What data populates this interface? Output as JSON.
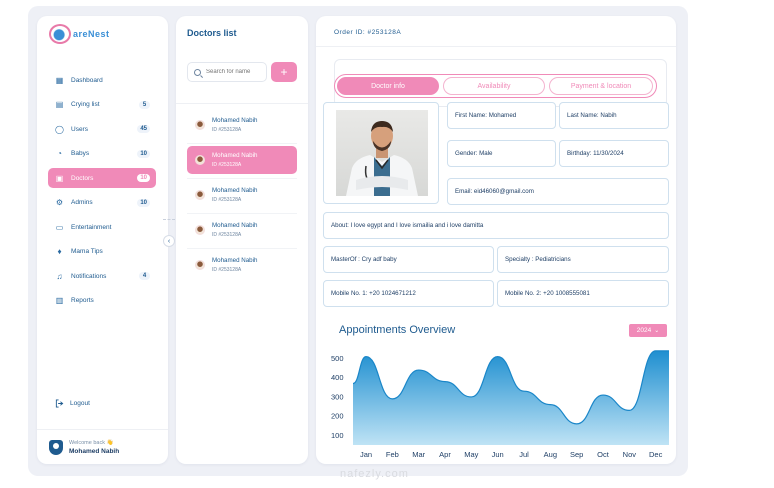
{
  "app": {
    "logo_text": "areNest"
  },
  "sidebar": {
    "items": [
      {
        "label": "Dashboard",
        "icon": "grid-icon",
        "count": ""
      },
      {
        "label": "Crying list",
        "icon": "doc-icon",
        "count": "5"
      },
      {
        "label": "Users",
        "icon": "user-icon",
        "count": "45"
      },
      {
        "label": "Babys",
        "icon": "baby-icon",
        "count": "10"
      },
      {
        "label": "Doctors",
        "icon": "briefcase-icon",
        "count": "10",
        "active": true
      },
      {
        "label": "Admins",
        "icon": "gear-icon",
        "count": "10"
      },
      {
        "label": "Entertainment",
        "icon": "film-icon",
        "count": ""
      },
      {
        "label": "Mama Tips",
        "icon": "tips-icon",
        "count": ""
      },
      {
        "label": "Notifications",
        "icon": "bell-icon",
        "count": "4"
      },
      {
        "label": "Reports",
        "icon": "report-icon",
        "count": ""
      }
    ],
    "logout": "Logout",
    "welcome": "Welcome back 👋",
    "user_name": "Mohamed Nabih"
  },
  "doctors": {
    "title": "Doctors list",
    "search_placeholder": "Search for name",
    "add_label": "+",
    "items": [
      {
        "name": "Mohamed Nabih",
        "id": "ID #253128A"
      },
      {
        "name": "Mohamed Nabih",
        "id": "ID #253128A",
        "active": true
      },
      {
        "name": "Mohamed Nabih",
        "id": "ID #253128A"
      },
      {
        "name": "Mohamed Nabih",
        "id": "ID #253128A"
      },
      {
        "name": "Mohamed Nabih",
        "id": "ID #253128A"
      }
    ]
  },
  "details": {
    "order_id": "Order ID: #253128A",
    "tabs": [
      "Doctor info",
      "Availability",
      "Payment & location"
    ],
    "first_name": "First Name: Mohamed",
    "last_name": "Last Name: Nabih",
    "gender": "Gender: Male",
    "birthday": "Birthday: 11/30/2024",
    "email": "Email: eid46060@gmail.com",
    "about": "About: I love egypt and I love ismailia and i love damitta",
    "master": "MasterOf : Cry adf baby",
    "specialty": "Specialty : Pediatricians",
    "mobile1": "Mobile No. 1: +20 1024671212",
    "mobile2": "Mobile No. 2: +20 1008555081"
  },
  "chart": {
    "title": "Appointments Overview",
    "year": "2024",
    "accent": "#2b95d4"
  },
  "chart_data": {
    "type": "area",
    "title": "Appointments Overview",
    "categories": [
      "Jan",
      "Feb",
      "Mar",
      "Apr",
      "May",
      "Jun",
      "Jul",
      "Aug",
      "Sep",
      "Oct",
      "Nov",
      "Dec"
    ],
    "x_start_value": 370,
    "values": [
      510,
      290,
      440,
      380,
      300,
      510,
      330,
      260,
      160,
      310,
      230,
      540
    ],
    "yticks": [
      100,
      200,
      300,
      400,
      500
    ],
    "ylim": [
      50,
      560
    ],
    "grid": false
  },
  "watermark": "nafezly.com"
}
